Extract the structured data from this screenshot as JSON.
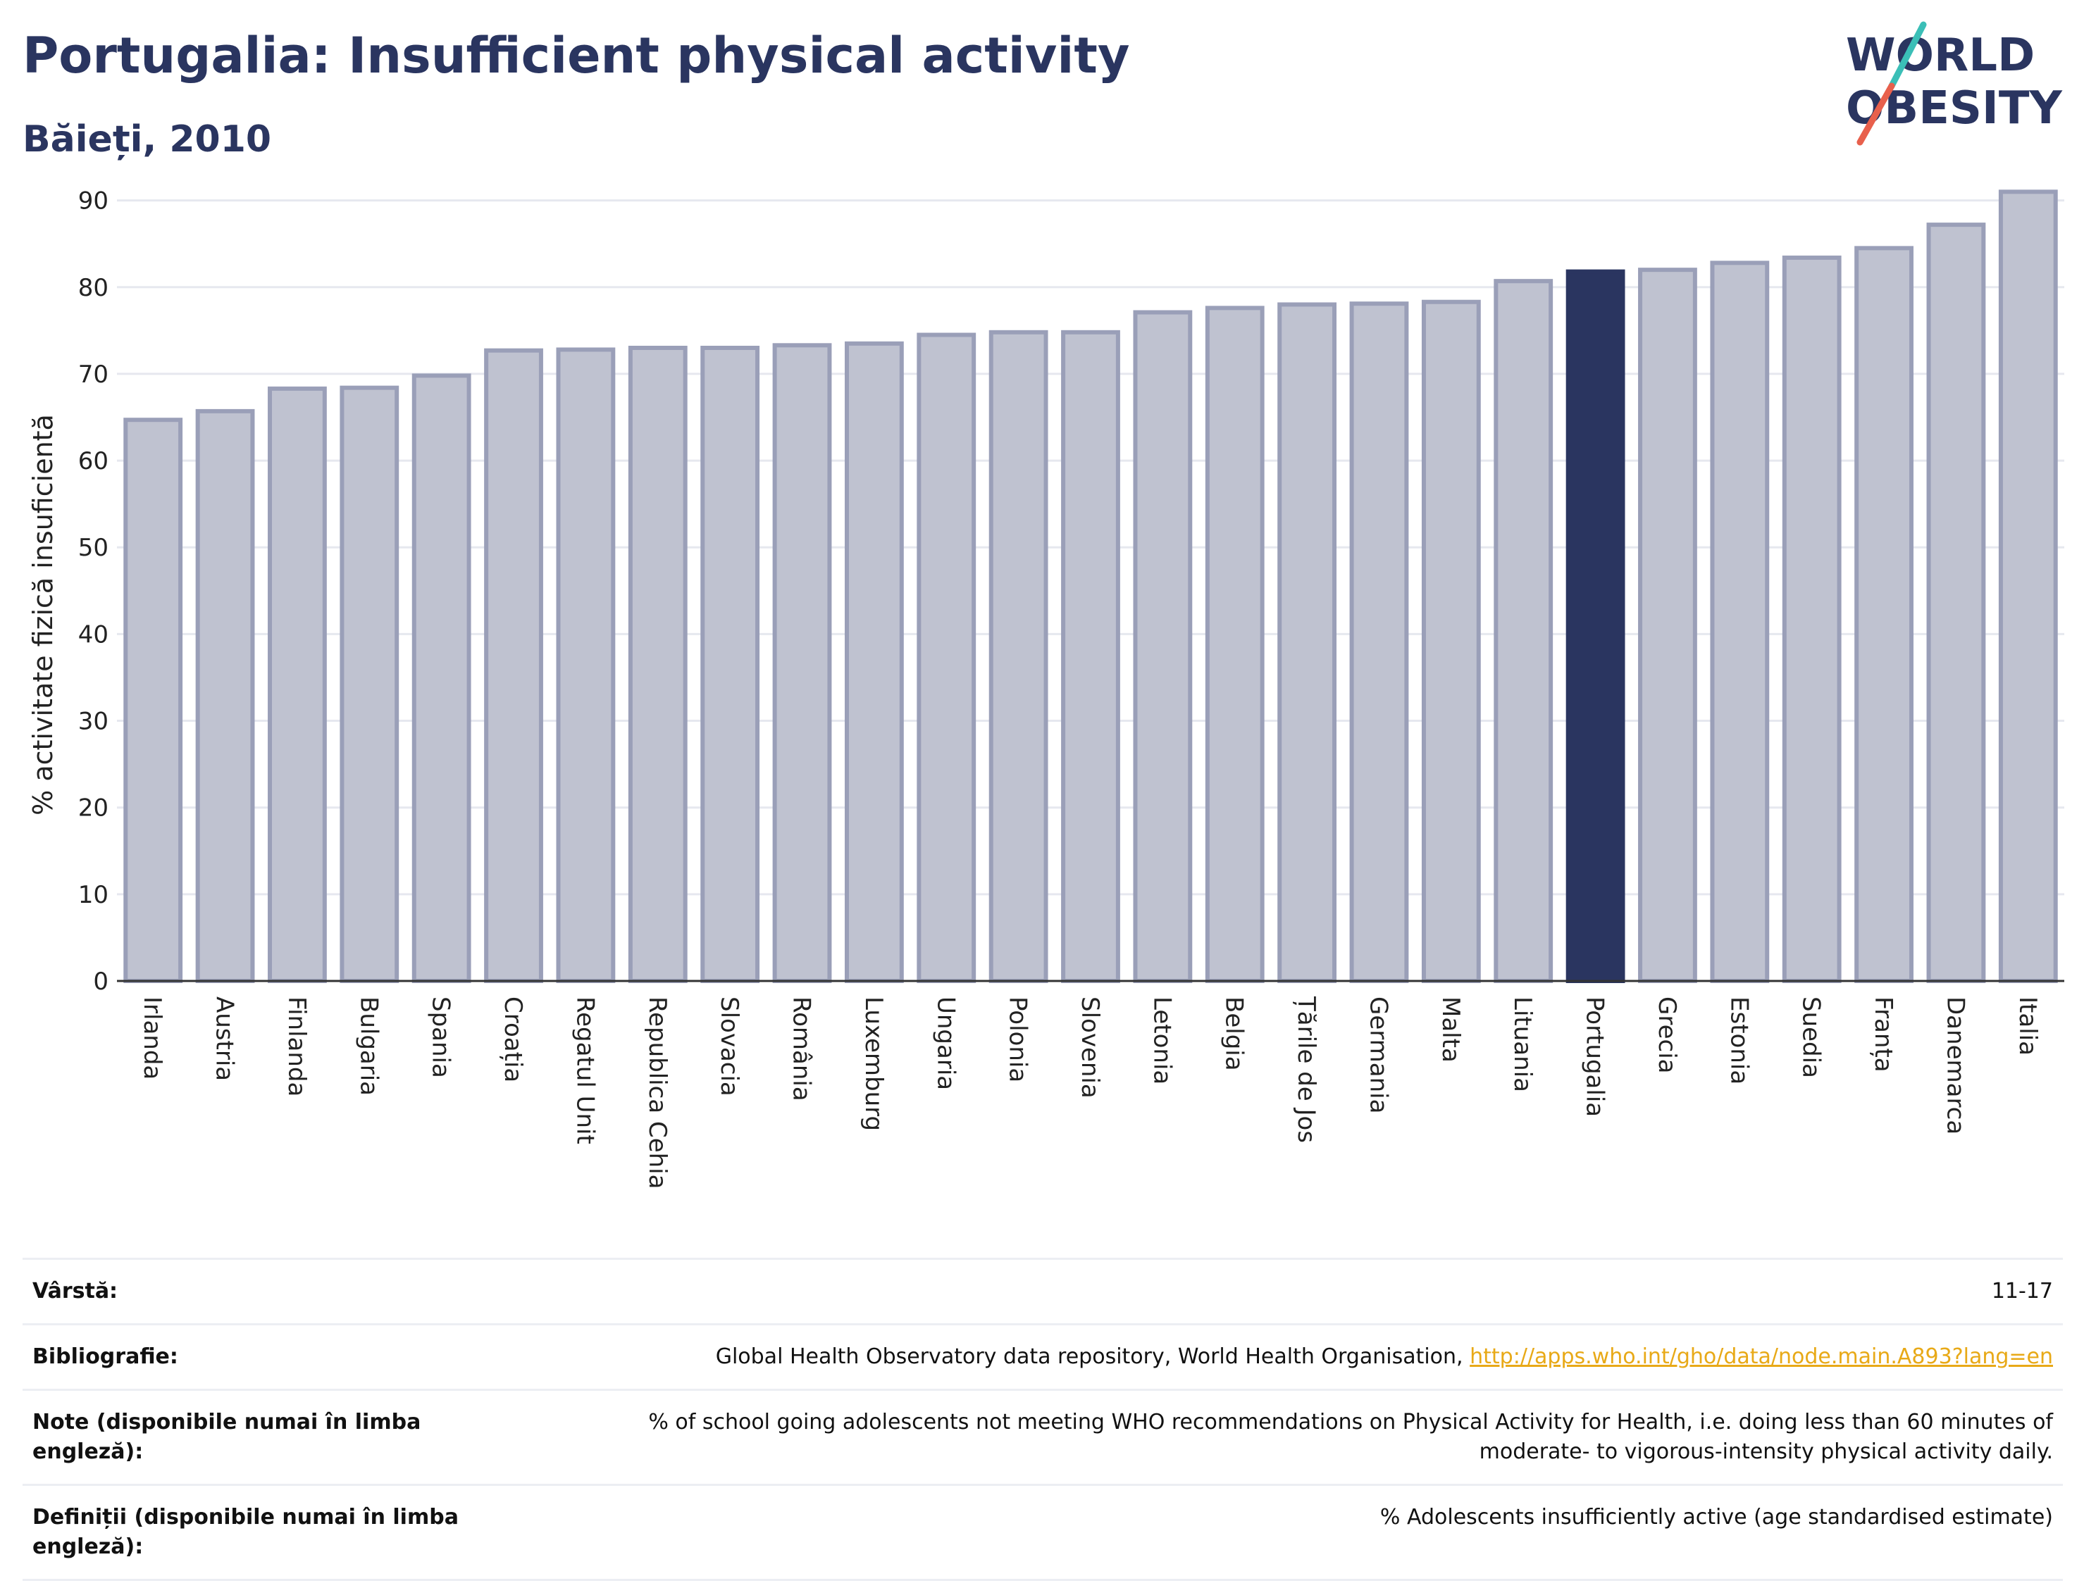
{
  "header": {
    "title": "Portugalia: Insufficient physical activity",
    "subtitle": "Băieți, 2010"
  },
  "logo": {
    "line1": "WORLD",
    "line2": "OBESITY",
    "accent_teal": "#3bbfb7",
    "accent_red": "#e8604c"
  },
  "colors": {
    "bar_default": "#bfc2d0",
    "bar_border": "#9a9fb8",
    "bar_highlight": "#2a3560",
    "grid": "#e6e8ef"
  },
  "chart_data": {
    "type": "bar",
    "ylabel": "% activitate fizică insuficientă",
    "ylim": [
      0,
      92
    ],
    "yticks": [
      0,
      10,
      20,
      30,
      40,
      50,
      60,
      70,
      80,
      90
    ],
    "grid": true,
    "highlight": "Portugalia",
    "categories": [
      "Irlanda",
      "Austria",
      "Finlanda",
      "Bulgaria",
      "Spania",
      "Croația",
      "Regatul Unit",
      "Republica Cehia",
      "Slovacia",
      "România",
      "Luxemburg",
      "Ungaria",
      "Polonia",
      "Slovenia",
      "Letonia",
      "Belgia",
      "Țările de Jos",
      "Germania",
      "Malta",
      "Lituania",
      "Portugalia",
      "Grecia",
      "Estonia",
      "Suedia",
      "Franța",
      "Danemarca",
      "Italia"
    ],
    "values": [
      64.7,
      65.7,
      68.3,
      68.4,
      69.8,
      72.7,
      72.8,
      73.0,
      73.0,
      73.3,
      73.5,
      74.5,
      74.8,
      74.8,
      77.1,
      77.6,
      78.0,
      78.1,
      78.3,
      80.7,
      81.8,
      82.0,
      82.8,
      83.4,
      84.5,
      87.2,
      91.0
    ]
  },
  "info": {
    "age_label": "Vârstă:",
    "age_value": "11-17",
    "bib_label": "Bibliografie:",
    "bib_text": "Global Health Observatory data repository, World Health Organisation,",
    "bib_link": "http://apps.who.int/gho/data/node.main.A893?lang=en",
    "notes_label": "Note (disponibile numai în limba engleză):",
    "notes_text": "% of school going adolescents not meeting WHO recommendations on Physical Activity for Health, i.e. doing less than 60 minutes of moderate- to vigorous-intensity physical activity daily.",
    "defs_label": "Definiții (disponibile numai în limba engleză):",
    "defs_text": "% Adolescents insufficiently active (age standardised estimate)"
  }
}
